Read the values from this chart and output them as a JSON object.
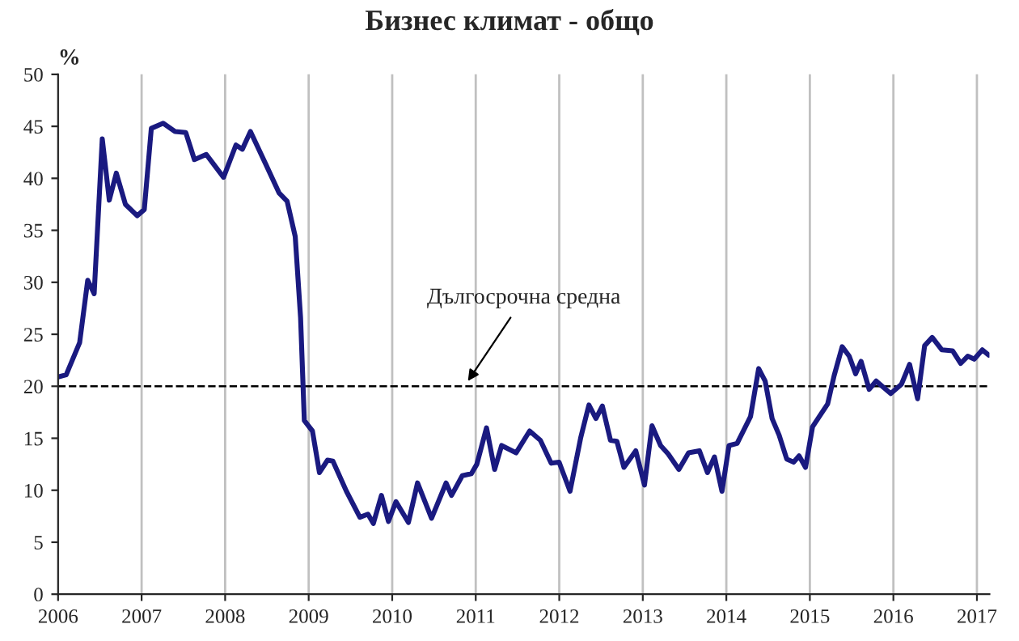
{
  "chart_data": {
    "type": "line",
    "title": "Бизнес климат - общо",
    "ylabel": "%",
    "x": [
      2006.0,
      2006.097,
      2006.258,
      2006.355,
      2006.432,
      2006.529,
      2006.613,
      2006.697,
      2006.806,
      2006.948,
      2007.032,
      2007.116,
      2007.258,
      2007.4,
      2007.529,
      2007.632,
      2007.774,
      2007.981,
      2008.129,
      2008.206,
      2008.303,
      2008.484,
      2008.645,
      2008.742,
      2008.839,
      2008.903,
      2008.948,
      2009.045,
      2009.129,
      2009.226,
      2009.29,
      2009.452,
      2009.613,
      2009.71,
      2009.774,
      2009.871,
      2009.955,
      2010.045,
      2010.194,
      2010.303,
      2010.471,
      2010.645,
      2010.71,
      2010.839,
      2010.948,
      2011.013,
      2011.129,
      2011.226,
      2011.31,
      2011.484,
      2011.645,
      2011.774,
      2011.903,
      2011.998,
      2012.129,
      2012.258,
      2012.355,
      2012.439,
      2012.516,
      2012.613,
      2012.69,
      2012.774,
      2012.916,
      2013.02,
      2013.11,
      2013.213,
      2013.303,
      2013.432,
      2013.548,
      2013.677,
      2013.774,
      2013.858,
      2013.948,
      2014.032,
      2014.129,
      2014.29,
      2014.387,
      2014.465,
      2014.548,
      2014.632,
      2014.723,
      2014.806,
      2014.871,
      2014.948,
      2015.032,
      2015.213,
      2015.29,
      2015.387,
      2015.471,
      2015.548,
      2015.613,
      2015.71,
      2015.794,
      2015.968,
      2016.097,
      2016.194,
      2016.29,
      2016.374,
      2016.465,
      2016.581,
      2016.71,
      2016.806,
      2016.89,
      2016.968,
      2017.065,
      2017.14
    ],
    "series": [
      {
        "color": "#1a1a80",
        "values": [
          20.9,
          21.1,
          24.2,
          30.2,
          28.9,
          43.8,
          37.9,
          40.5,
          37.5,
          36.4,
          37.0,
          44.8,
          45.3,
          44.5,
          44.4,
          41.8,
          42.3,
          40.1,
          43.2,
          42.8,
          44.5,
          41.4,
          38.6,
          37.8,
          34.4,
          26.6,
          16.7,
          15.7,
          11.7,
          12.9,
          12.8,
          9.9,
          7.4,
          7.7,
          6.8,
          9.5,
          7.0,
          8.9,
          6.9,
          10.7,
          7.3,
          10.7,
          9.5,
          11.4,
          11.6,
          12.5,
          16.0,
          12.0,
          14.3,
          13.6,
          15.7,
          14.8,
          12.6,
          12.7,
          9.9,
          15.1,
          18.2,
          16.9,
          18.1,
          14.8,
          14.7,
          12.2,
          13.8,
          10.5,
          16.2,
          14.3,
          13.5,
          12.0,
          13.6,
          13.8,
          11.7,
          13.2,
          9.9,
          14.3,
          14.5,
          17.1,
          21.7,
          20.5,
          16.9,
          15.3,
          13.0,
          12.7,
          13.3,
          12.2,
          16.1,
          18.3,
          21.0,
          23.8,
          22.9,
          21.2,
          22.4,
          19.7,
          20.5,
          19.3,
          20.2,
          22.1,
          18.8,
          23.9,
          24.7,
          23.5,
          23.4,
          22.2,
          22.9,
          22.6,
          23.5,
          23.0
        ]
      }
    ],
    "xlim": [
      2006,
      2017.15
    ],
    "xticks": [
      2006,
      2007,
      2008,
      2009,
      2010,
      2011,
      2012,
      2013,
      2014,
      2015,
      2016,
      2017
    ],
    "ylim": [
      0,
      50
    ],
    "yticks": [
      0,
      5,
      10,
      15,
      20,
      25,
      30,
      35,
      40,
      45,
      50
    ],
    "ref_lines": [
      {
        "axis": "y",
        "value": 20,
        "label": "Дългосрочна средна",
        "color": "#000000",
        "line_style": "dashed"
      }
    ],
    "grid": "x",
    "legend": false,
    "marker": "none",
    "line_style": "solid"
  }
}
